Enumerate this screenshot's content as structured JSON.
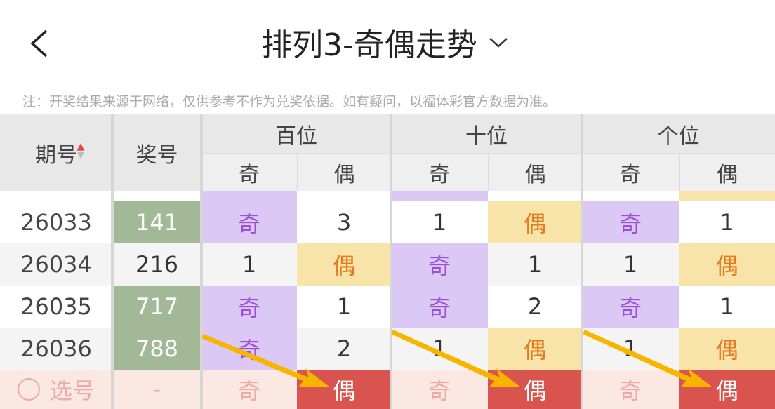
{
  "header": {
    "title": "排列3-奇偶走势"
  },
  "note": "注：开奖结果来源于网络，仅供参考不作为兑奖依据。如有疑问，以福体彩官方数据为准。",
  "table": {
    "columns": [
      "期号",
      "奖号",
      "百位",
      "十位",
      "个位"
    ],
    "sub_columns": [
      "奇",
      "偶",
      "奇",
      "偶",
      "奇",
      "偶"
    ],
    "rows": [
      [
        "26033",
        "141",
        "奇",
        "3",
        "1",
        "偶",
        "奇",
        "1"
      ],
      [
        "26034",
        "216",
        "1",
        "偶",
        "奇",
        "1",
        "1",
        "偶"
      ],
      [
        "26035",
        "717",
        "奇",
        "1",
        "奇",
        "2",
        "奇",
        "1"
      ],
      [
        "26036",
        "788",
        "奇",
        "2",
        "1",
        "偶",
        "1",
        "偶"
      ]
    ],
    "prize_highlight": [
      true,
      false,
      true,
      true
    ],
    "select_row": [
      "选号",
      "-",
      "奇",
      "偶",
      "奇",
      "偶",
      "奇",
      "偶"
    ]
  }
}
